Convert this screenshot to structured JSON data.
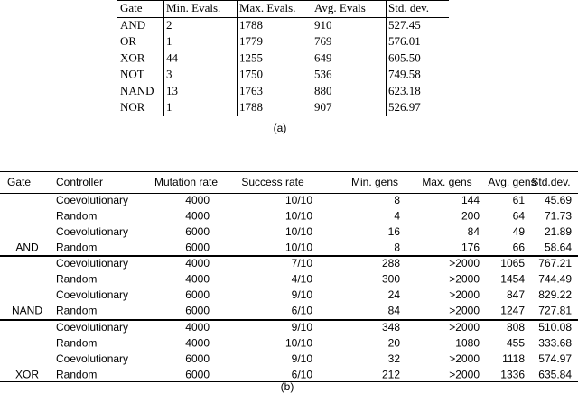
{
  "table_a": {
    "header": [
      "Gate",
      "Min. Evals.",
      "Max. Evals.",
      "Avg. Evals",
      "Std. dev."
    ],
    "rows": [
      [
        "AND",
        "2",
        "1788",
        "910",
        "527.45"
      ],
      [
        "OR",
        "1",
        "1779",
        "769",
        "576.01"
      ],
      [
        "XOR",
        "44",
        "1255",
        "649",
        "605.50"
      ],
      [
        "NOT",
        "3",
        "1750",
        "536",
        "749.58"
      ],
      [
        "NAND",
        "13",
        "1763",
        "880",
        "623.18"
      ],
      [
        "NOR",
        "1",
        "1788",
        "907",
        "526.97"
      ]
    ],
    "caption": "(a)"
  },
  "table_b": {
    "header": [
      "Gate",
      "Controller",
      "Mutation rate",
      "Success rate",
      "Min. gens",
      "Max. gens",
      "Avg. gens",
      "Std.dev."
    ],
    "groups": [
      {
        "gate": "AND",
        "rows": [
          [
            "Coevolutionary",
            "4000",
            "10/10",
            "8",
            "144",
            "61",
            "45.69"
          ],
          [
            "Random",
            "4000",
            "10/10",
            "4",
            "200",
            "64",
            "71.73"
          ],
          [
            "Coevolutionary",
            "6000",
            "10/10",
            "16",
            "84",
            "49",
            "21.89"
          ],
          [
            "Random",
            "6000",
            "10/10",
            "8",
            "176",
            "66",
            "58.64"
          ]
        ]
      },
      {
        "gate": "NAND",
        "rows": [
          [
            "Coevolutionary",
            "4000",
            "7/10",
            "288",
            ">2000",
            "1065",
            "767.21"
          ],
          [
            "Random",
            "4000",
            "4/10",
            "300",
            ">2000",
            "1454",
            "744.49"
          ],
          [
            "Coevolutionary",
            "6000",
            "9/10",
            "24",
            ">2000",
            "847",
            "829.22"
          ],
          [
            "Random",
            "6000",
            "6/10",
            "84",
            ">2000",
            "1247",
            "727.81"
          ]
        ]
      },
      {
        "gate": "XOR",
        "rows": [
          [
            "Coevolutionary",
            "4000",
            "9/10",
            "348",
            ">2000",
            "808",
            "510.08"
          ],
          [
            "Random",
            "4000",
            "10/10",
            "20",
            "1080",
            "455",
            "333.68"
          ],
          [
            "Coevolutionary",
            "6000",
            "9/10",
            "32",
            ">2000",
            "1118",
            "574.97"
          ],
          [
            "Random",
            "6000",
            "6/10",
            "212",
            ">2000",
            "1336",
            "635.84"
          ]
        ]
      }
    ],
    "caption": "(b)"
  }
}
